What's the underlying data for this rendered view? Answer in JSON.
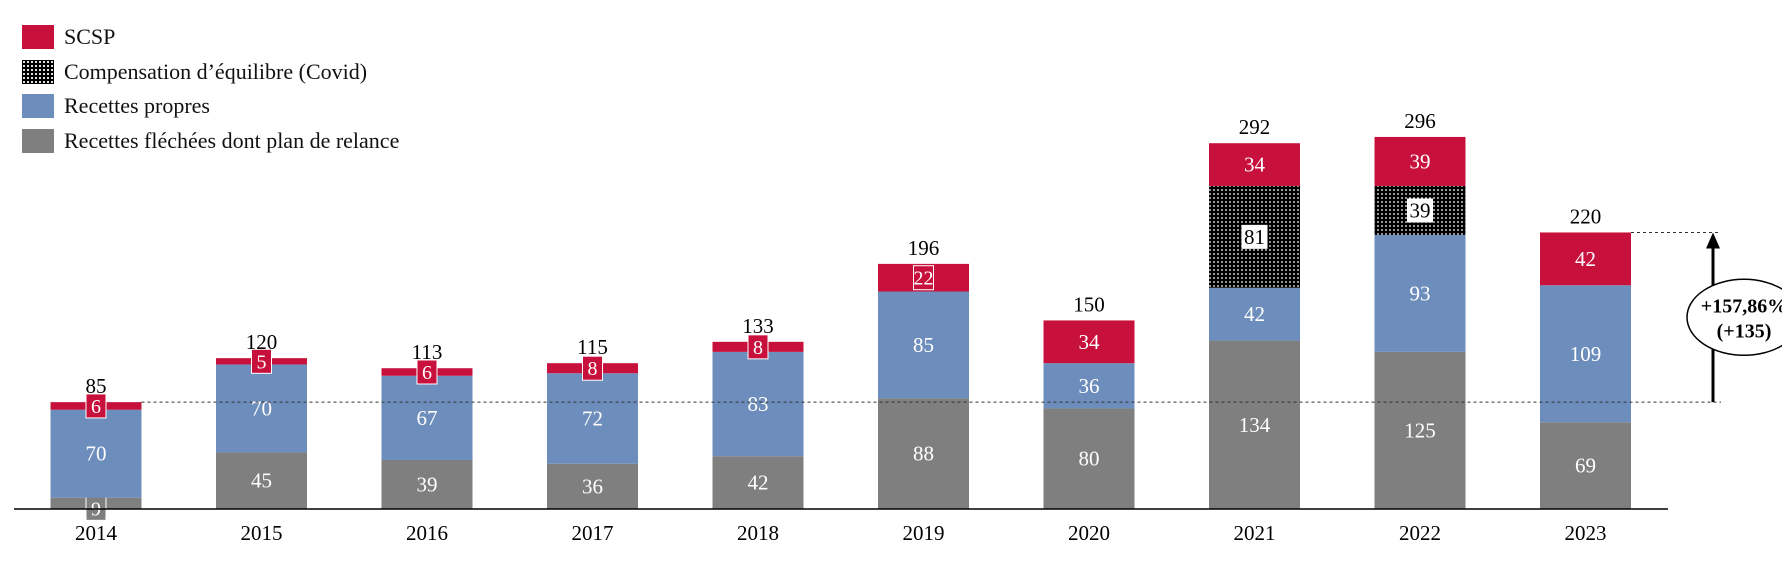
{
  "chart_data": {
    "type": "bar",
    "stacked": true,
    "categories": [
      "2014",
      "2015",
      "2016",
      "2017",
      "2018",
      "2019",
      "2020",
      "2021",
      "2022",
      "2023"
    ],
    "series": [
      {
        "name": "Recettes fléchées dont plan de relance",
        "color": "#7f7f7f",
        "label_color": "#ffffff",
        "values": [
          9,
          45,
          39,
          36,
          42,
          88,
          80,
          134,
          125,
          69
        ]
      },
      {
        "name": "Recettes propres",
        "color": "#6d8ebc",
        "label_color": "#ffffff",
        "values": [
          70,
          70,
          67,
          72,
          83,
          85,
          36,
          42,
          93,
          109
        ]
      },
      {
        "name": "Compensation d’équilibre (Covid)",
        "color": "#111111",
        "pattern": "dots",
        "label_color": "#000000",
        "values": [
          0,
          0,
          0,
          0,
          0,
          0,
          0,
          81,
          39,
          0
        ]
      },
      {
        "name": "SCSP",
        "color": "#c8103c",
        "label_color": "#ffffff",
        "values": [
          6,
          5,
          6,
          8,
          8,
          22,
          34,
          34,
          39,
          42
        ]
      }
    ],
    "totals": [
      "85",
      "120",
      "113",
      "115",
      "133",
      "196",
      "150",
      "292",
      "296",
      "220"
    ],
    "legend_order": [
      "SCSP",
      "Compensation d’équilibre (Covid)",
      "Recettes propres",
      "Recettes fléchées dont plan de relance"
    ],
    "legend_position": "top-left",
    "grid": false,
    "ylim": [
      0,
      300
    ],
    "annotation": {
      "line1": "+157,86%",
      "line2": "(+135)",
      "from_value": 85,
      "to_value": 220
    }
  }
}
